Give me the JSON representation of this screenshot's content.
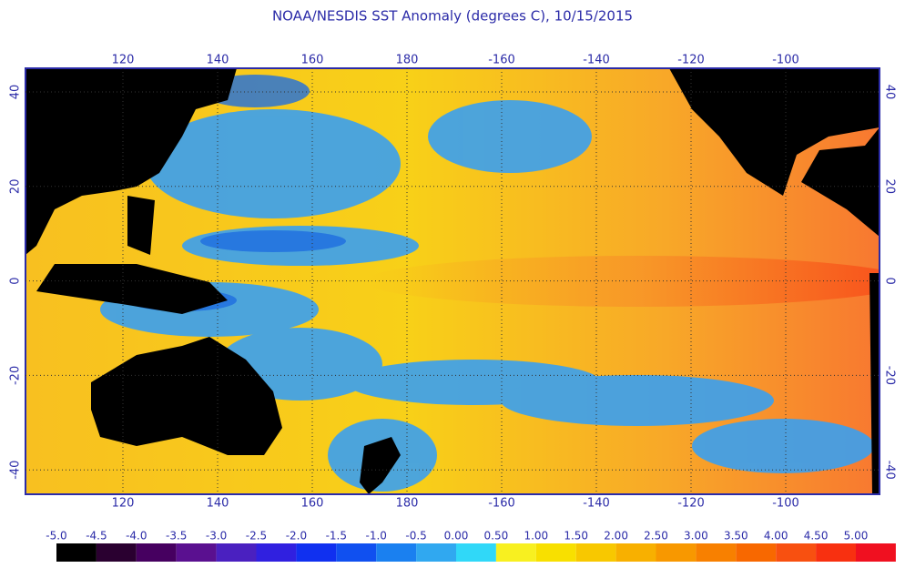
{
  "title": "NOAA/NESDIS SST Anomaly (degrees C), 10/15/2015",
  "map": {
    "top_labels": [
      "120",
      "140",
      "160",
      "180",
      "-160",
      "-140",
      "-120",
      "-100"
    ],
    "bottom_labels": [
      "120",
      "140",
      "160",
      "180",
      "-160",
      "-140",
      "-120",
      "-100"
    ],
    "left_labels": [
      "40",
      "20",
      "0",
      "-20",
      "-40"
    ],
    "right_labels": [
      "40",
      "20",
      "0",
      "-20",
      "-40"
    ]
  },
  "colorbar": {
    "labels": [
      "-5.0",
      "-4.5",
      "-4.0",
      "-3.5",
      "-3.0",
      "-2.5",
      "-2.0",
      "-1.5",
      "-1.0",
      "-0.5",
      "0.00",
      "0.50",
      "1.00",
      "1.50",
      "2.00",
      "2.50",
      "3.00",
      "3.50",
      "4.00",
      "4.50",
      "5.00"
    ],
    "colors": [
      "#000000",
      "#2a0030",
      "#460060",
      "#5a1090",
      "#4a20c0",
      "#3020e0",
      "#1030f0",
      "#1050f0",
      "#1a80f0",
      "#30a8f0",
      "#30d8f8",
      "#f8f020",
      "#f8e000",
      "#f8c800",
      "#f8b000",
      "#f89800",
      "#f88000",
      "#f86800",
      "#f85010",
      "#f83010",
      "#f01020"
    ]
  }
}
